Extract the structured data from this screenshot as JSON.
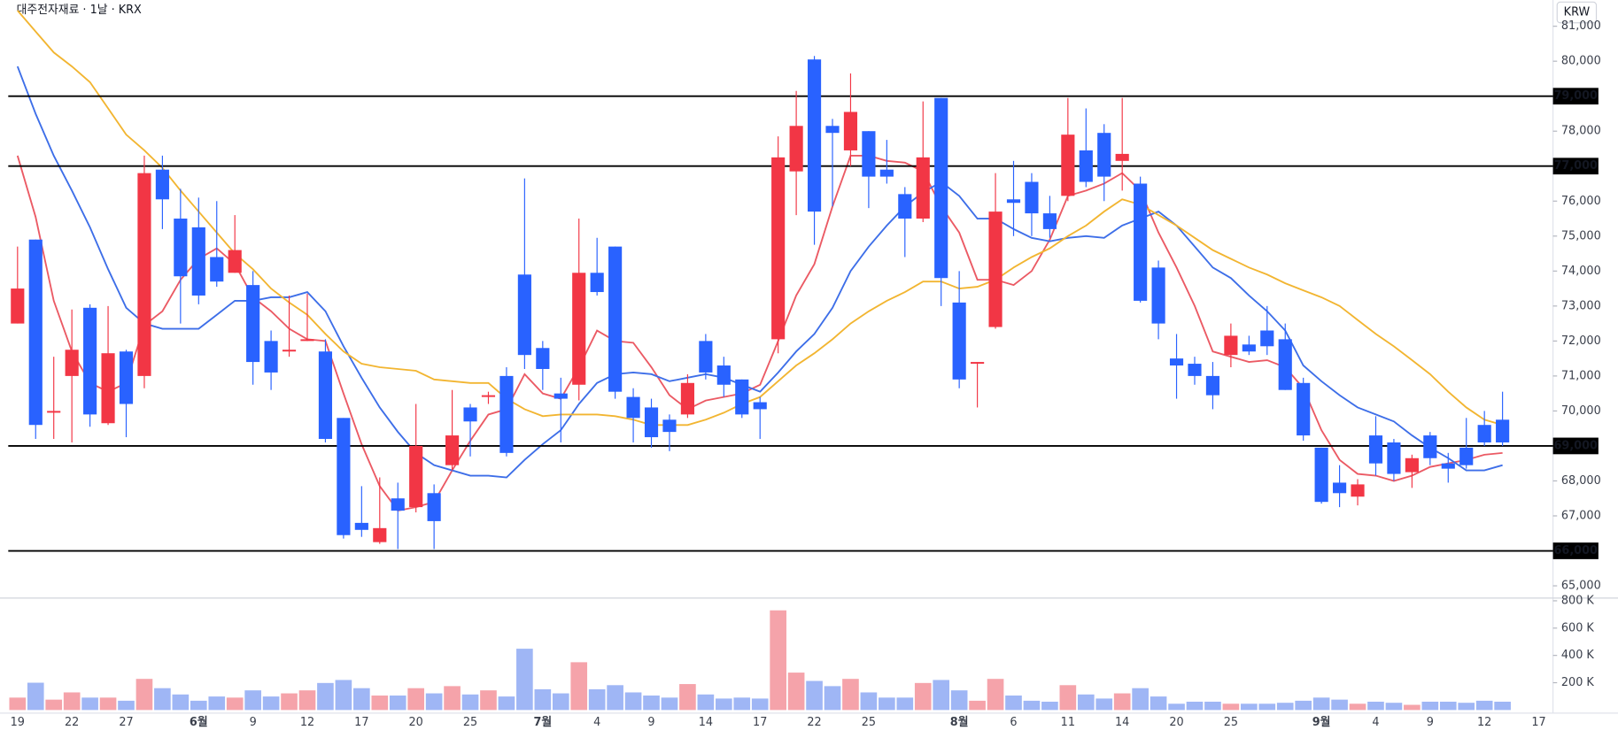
{
  "chart_data": {
    "type": "candlestick",
    "title": "대주전자재료 · 1날 · KRX",
    "currency": "KRW",
    "up_color": "#f23645",
    "down_color": "#2962ff",
    "categories": [
      "19",
      null,
      null,
      "22",
      null,
      null,
      "27",
      null,
      null,
      null,
      "6월",
      null,
      null,
      "9",
      null,
      null,
      "12",
      null,
      null,
      "17",
      null,
      null,
      "20",
      null,
      null,
      "25",
      null,
      null,
      null,
      "7월",
      null,
      null,
      "4",
      null,
      null,
      "9",
      null,
      null,
      "14",
      null,
      null,
      "17",
      null,
      null,
      "22",
      null,
      null,
      "25",
      null,
      null,
      null,
      null,
      "8월",
      null,
      null,
      "6",
      null,
      null,
      "11",
      null,
      null,
      "14",
      null,
      null,
      "20",
      null,
      null,
      "25",
      null,
      null,
      null,
      null,
      "9월",
      null,
      null,
      "4",
      null,
      null,
      "9",
      null,
      null,
      "12",
      null,
      null,
      "17"
    ],
    "open": [
      72500,
      74900,
      69950,
      71000,
      72950,
      69650,
      71700,
      71000,
      76900,
      75500,
      75250,
      74400,
      73950,
      73600,
      72000,
      71700,
      72000,
      71700,
      69800,
      66800,
      66250,
      67500,
      67250,
      67650,
      68450,
      70100,
      70400,
      71000,
      73900,
      71800,
      70500,
      70750,
      73950,
      74700,
      70400,
      70100,
      69750,
      69900,
      72000,
      71300,
      70900,
      70250,
      72050,
      76850,
      80050,
      78150,
      77450,
      78000,
      76900,
      76200,
      75500,
      78950,
      73100,
      71350,
      72400,
      76050,
      76550,
      75650,
      76150,
      77450,
      77950,
      77150,
      76500,
      74100,
      71500,
      71350,
      71000,
      71600,
      71900,
      72300,
      72050,
      70800,
      68950,
      67950,
      67550,
      69300,
      69100,
      68250,
      69300,
      68500,
      68950,
      69600,
      69750,
      null,
      null
    ],
    "high": [
      74700,
      74900,
      71550,
      72900,
      73050,
      73000,
      71750,
      77300,
      77300,
      76350,
      76100,
      76000,
      75600,
      74000,
      72300,
      73300,
      73350,
      72050,
      69800,
      67850,
      68100,
      67950,
      70200,
      67900,
      70600,
      70200,
      70550,
      71250,
      76650,
      72000,
      70950,
      75500,
      74950,
      74700,
      70650,
      70350,
      69900,
      71050,
      72200,
      71550,
      70900,
      70400,
      77850,
      79150,
      80150,
      78350,
      79650,
      78000,
      77750,
      76400,
      78850,
      78950,
      74000,
      71400,
      76800,
      77150,
      76800,
      76150,
      78950,
      78650,
      78200,
      78950,
      76700,
      74300,
      72200,
      71550,
      71400,
      72500,
      72150,
      73000,
      72500,
      70950,
      68950,
      68450,
      68050,
      69850,
      69200,
      68750,
      69400,
      68800,
      69800,
      70000,
      70550,
      null,
      null
    ],
    "low": [
      72500,
      69200,
      69200,
      69100,
      69550,
      69600,
      69250,
      70650,
      75200,
      72500,
      73050,
      73550,
      73950,
      70750,
      70600,
      71550,
      72000,
      69100,
      66350,
      66400,
      66200,
      66050,
      67100,
      66050,
      68300,
      68700,
      70200,
      68700,
      71200,
      70600,
      69100,
      70300,
      73300,
      70350,
      69100,
      68950,
      68850,
      69800,
      70900,
      70400,
      69800,
      69200,
      71650,
      75600,
      74750,
      75850,
      77000,
      75800,
      76500,
      74400,
      75400,
      73000,
      70650,
      70100,
      72350,
      75000,
      75000,
      74950,
      76000,
      76400,
      76000,
      76300,
      73100,
      72050,
      70350,
      70750,
      70050,
      71250,
      71600,
      71600,
      70600,
      69150,
      67350,
      67250,
      67300,
      68150,
      68000,
      67800,
      68450,
      67950,
      68350,
      69000,
      69000,
      null,
      null
    ],
    "close": [
      73500,
      69600,
      70000,
      71750,
      69900,
      71650,
      70200,
      76800,
      76050,
      73850,
      73300,
      73700,
      74600,
      71400,
      71100,
      71750,
      72050,
      69200,
      66450,
      66600,
      66650,
      67150,
      69000,
      66850,
      69300,
      69700,
      70450,
      68800,
      71600,
      71200,
      70350,
      73950,
      73400,
      70550,
      69800,
      69250,
      69400,
      70800,
      71100,
      70750,
      69900,
      70050,
      77250,
      78150,
      75700,
      77950,
      78550,
      76700,
      76700,
      75500,
      77250,
      73800,
      70900,
      71400,
      75700,
      75950,
      75650,
      75200,
      77900,
      76550,
      76700,
      77350,
      73150,
      72500,
      71300,
      71000,
      70450,
      72150,
      71700,
      71850,
      70600,
      69300,
      67400,
      67650,
      67900,
      68500,
      68200,
      68650,
      68650,
      68350,
      68450,
      69100,
      69100,
      null,
      null
    ],
    "ylim": [
      64650,
      81750
    ],
    "yticks": [
      {
        "value": 65000,
        "label": "65,000"
      },
      {
        "value": 67000,
        "label": "67,000"
      },
      {
        "value": 68000,
        "label": "68,000"
      },
      {
        "value": 70000,
        "label": "70,000"
      },
      {
        "value": 71000,
        "label": "71,000"
      },
      {
        "value": 72000,
        "label": "72,000"
      },
      {
        "value": 73000,
        "label": "73,000"
      },
      {
        "value": 74000,
        "label": "74,000"
      },
      {
        "value": 75000,
        "label": "75,000"
      },
      {
        "value": 76000,
        "label": "76,000"
      },
      {
        "value": 78000,
        "label": "78,000"
      },
      {
        "value": 80000,
        "label": "80,000"
      },
      {
        "value": 81000,
        "label": "81,000"
      }
    ],
    "levels": [
      {
        "value": 79000,
        "label": "79,000"
      },
      {
        "value": 77000,
        "label": "77,000"
      },
      {
        "value": 69000,
        "label": "69,000"
      },
      {
        "value": 66000,
        "label": "66,000"
      }
    ],
    "level_color": "#000000",
    "ma": [
      {
        "color": "#eb5a64",
        "values": [
          77300,
          75550,
          73150,
          71700,
          70800,
          70550,
          70800,
          72450,
          72850,
          73750,
          74350,
          74650,
          74200,
          73250,
          72850,
          72350,
          72050,
          72000,
          70500,
          69050,
          67850,
          67150,
          67250,
          67400,
          68300,
          69150,
          69900,
          70050,
          71050,
          70500,
          70350,
          71250,
          72300,
          72000,
          71950,
          71250,
          70450,
          70050,
          70300,
          70400,
          70500,
          70750,
          72000,
          73300,
          74200,
          75850,
          77300,
          77300,
          77150,
          77100,
          76850,
          75850,
          75100,
          73750,
          73750,
          73600,
          74000,
          74900,
          76150,
          76300,
          76500,
          76800,
          76300,
          75100,
          74100,
          73000,
          71700,
          71550,
          71400,
          71450,
          71250,
          70650,
          69450,
          68600,
          68200,
          68150,
          68000,
          68150,
          68400,
          68500,
          68600,
          68750,
          68800,
          null,
          null
        ]
      },
      {
        "color": "#3d6ee8",
        "values": [
          79850,
          78500,
          77300,
          76300,
          75250,
          74050,
          72950,
          72500,
          72350,
          72350,
          72350,
          72750,
          73150,
          73150,
          73250,
          73250,
          73400,
          72850,
          71850,
          70950,
          70100,
          69400,
          68800,
          68450,
          68300,
          68150,
          68150,
          68100,
          68600,
          69050,
          69450,
          70200,
          70800,
          71050,
          71100,
          71050,
          70850,
          70950,
          71050,
          70950,
          70750,
          70550,
          71100,
          71700,
          72200,
          72950,
          74000,
          74700,
          75300,
          75850,
          76250,
          76550,
          76150,
          75500,
          75500,
          75200,
          74950,
          74850,
          74950,
          75000,
          74950,
          75300,
          75500,
          75700,
          75300,
          74700,
          74100,
          73800,
          73300,
          72850,
          72300,
          71300,
          70850,
          70450,
          70100,
          69900,
          69700,
          69300,
          68950,
          68650,
          68300,
          68300,
          68450,
          null,
          null
        ]
      },
      {
        "color": "#f2b531",
        "values": [
          81450,
          80850,
          80250,
          79850,
          79400,
          78650,
          77900,
          77450,
          76950,
          76300,
          75700,
          75100,
          74500,
          74050,
          73500,
          73100,
          72750,
          72200,
          71700,
          71350,
          71250,
          71200,
          71150,
          70900,
          70850,
          70800,
          70800,
          70350,
          70050,
          69850,
          69900,
          69900,
          69900,
          69850,
          69750,
          69600,
          69600,
          69600,
          69750,
          69950,
          70200,
          70400,
          70850,
          71300,
          71650,
          72050,
          72500,
          72850,
          73150,
          73400,
          73700,
          73700,
          73500,
          73550,
          73750,
          74100,
          74400,
          74650,
          75000,
          75300,
          75700,
          76050,
          75900,
          75600,
          75300,
          74950,
          74600,
          74350,
          74100,
          73900,
          73650,
          73450,
          73250,
          73000,
          72600,
          72200,
          71850,
          71450,
          71050,
          70550,
          70100,
          69750,
          69600,
          null,
          null
        ]
      }
    ],
    "volume": {
      "up_color": "#f5a3aa",
      "down_color": "#9fb6f5",
      "ylim": [
        0,
        820000
      ],
      "yticks": [
        {
          "value": 200000,
          "label": "200 K"
        },
        {
          "value": 400000,
          "label": "400 K"
        },
        {
          "value": 600000,
          "label": "600 K"
        },
        {
          "value": 800000,
          "label": "800 K"
        }
      ],
      "values": [
        91000,
        200000,
        76000,
        129000,
        91000,
        91000,
        68000,
        228000,
        160000,
        114000,
        68000,
        99000,
        91000,
        144000,
        99000,
        122000,
        144000,
        198000,
        220000,
        160000,
        106000,
        106000,
        160000,
        122000,
        175000,
        114000,
        144000,
        99000,
        449000,
        152000,
        122000,
        350000,
        152000,
        182000,
        129000,
        106000,
        91000,
        190000,
        114000,
        84000,
        91000,
        84000,
        730000,
        274000,
        213000,
        175000,
        228000,
        129000,
        91000,
        91000,
        198000,
        220000,
        144000,
        68000,
        228000,
        106000,
        68000,
        61000,
        182000,
        114000,
        84000,
        122000,
        160000,
        99000,
        46000,
        61000,
        61000,
        46000,
        46000,
        46000,
        53000,
        68000,
        91000,
        76000,
        46000,
        61000,
        53000,
        38000,
        61000,
        61000,
        53000,
        68000,
        61000,
        null,
        null
      ]
    }
  }
}
